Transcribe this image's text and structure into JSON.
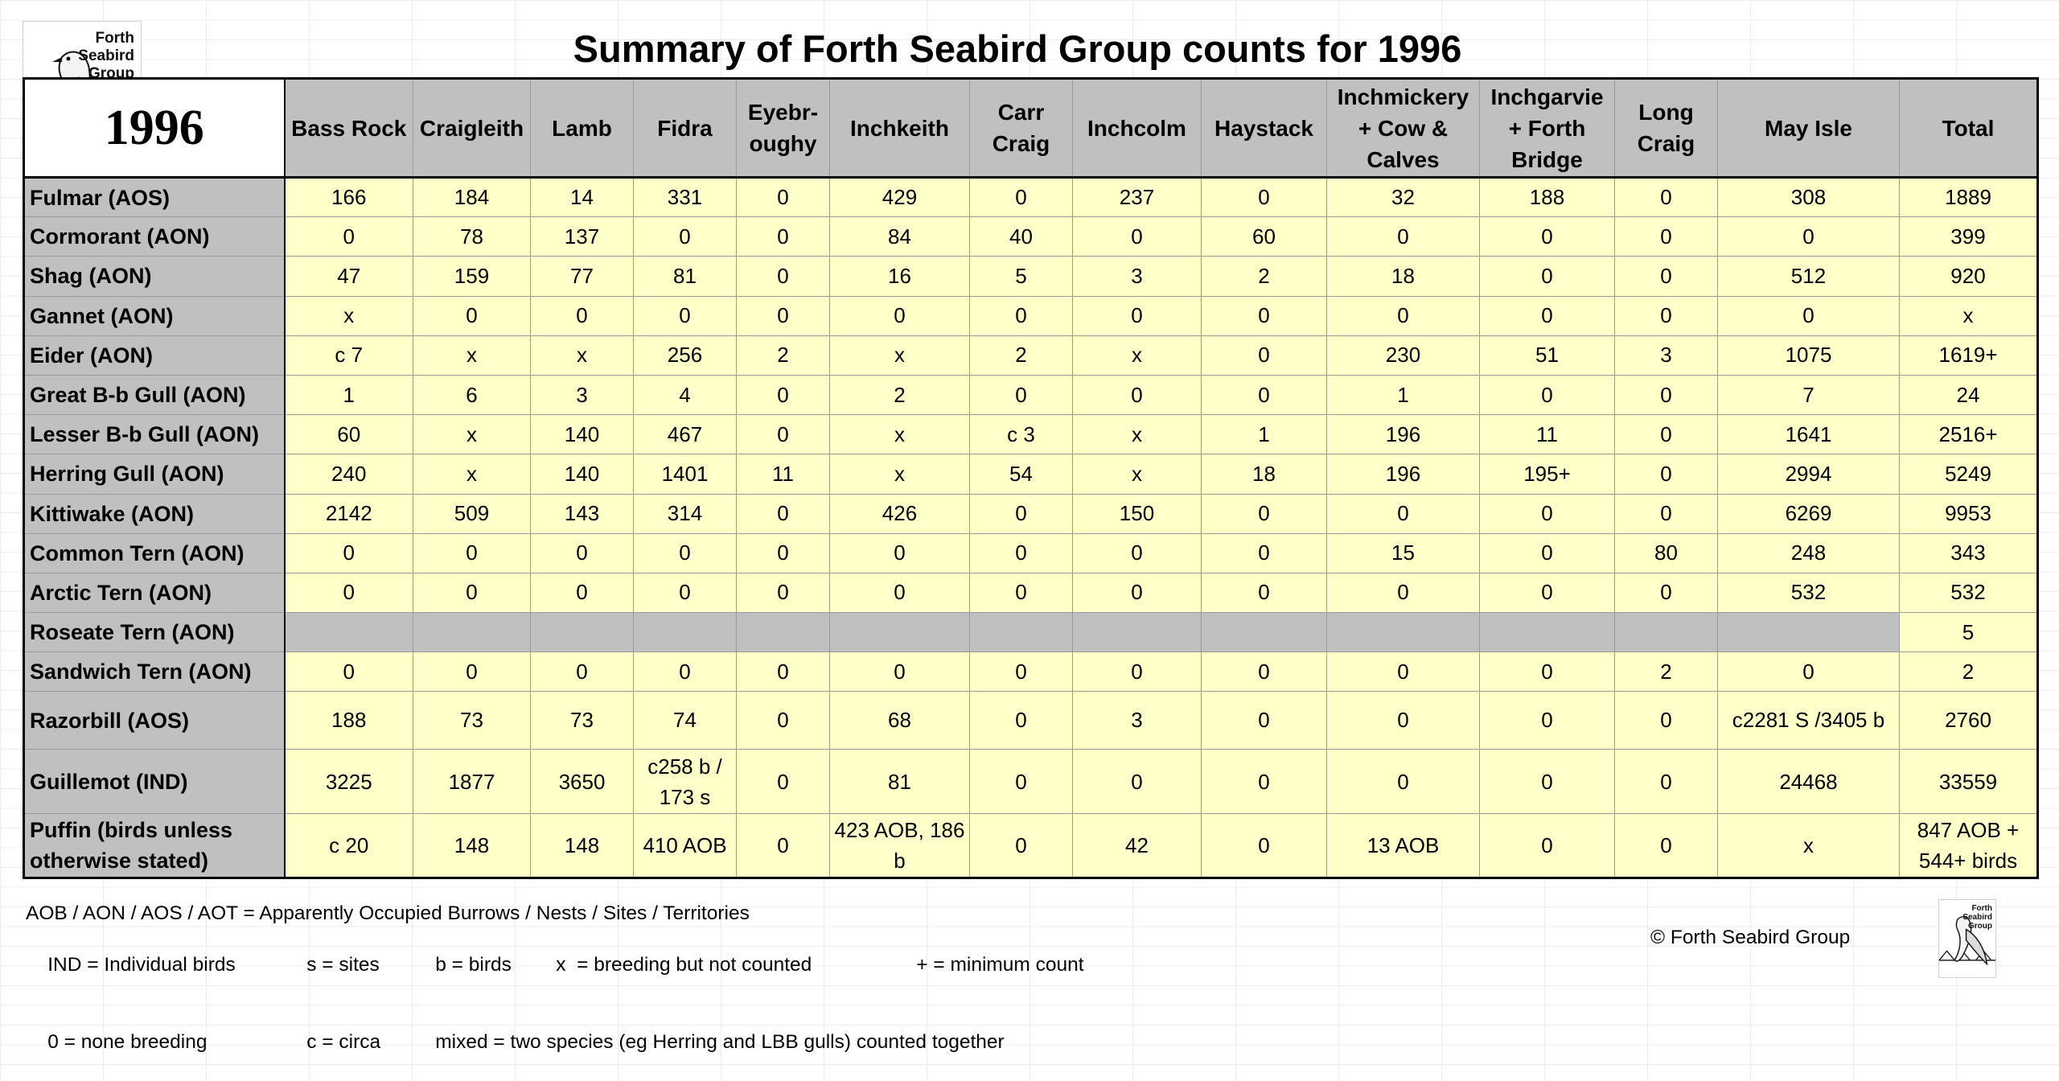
{
  "logo": {
    "text": "Forth\nSeabird\nGroup"
  },
  "title": "Summary of Forth Seabird Group counts for 1996",
  "table": {
    "year": "1996",
    "columns": [
      "Bass Rock",
      "Craigleith",
      "Lamb",
      "Fidra",
      "Eyebr-\noughy",
      "Inchkeith",
      "Carr\nCraig",
      "Inchcolm",
      "Haystack",
      "Inchmickery\n+ Cow &\nCalves",
      "Inchgarvie\n+ Forth\nBridge",
      "Long\nCraig",
      "May Isle",
      "Total"
    ],
    "rows": [
      {
        "species": "Fulmar (AOS)",
        "values": [
          "166",
          "184",
          "14",
          "331",
          "0",
          "429",
          "0",
          "237",
          "0",
          "32",
          "188",
          "0",
          "308",
          "1889"
        ]
      },
      {
        "species": "Cormorant (AON)",
        "values": [
          "0",
          "78",
          "137",
          "0",
          "0",
          "84",
          "40",
          "0",
          "60",
          "0",
          "0",
          "0",
          "0",
          "399"
        ]
      },
      {
        "species": "Shag (AON)",
        "values": [
          "47",
          "159",
          "77",
          "81",
          "0",
          "16",
          "5",
          "3",
          "2",
          "18",
          "0",
          "0",
          "512",
          "920"
        ]
      },
      {
        "species": "Gannet (AON)",
        "values": [
          "x",
          "0",
          "0",
          "0",
          "0",
          "0",
          "0",
          "0",
          "0",
          "0",
          "0",
          "0",
          "0",
          "x"
        ]
      },
      {
        "species": "Eider (AON)",
        "values": [
          "c 7",
          "x",
          "x",
          "256",
          "2",
          "x",
          "2",
          "x",
          "0",
          "230",
          "51",
          "3",
          "1075",
          "1619+"
        ]
      },
      {
        "species": "Great B-b Gull (AON)",
        "values": [
          "1",
          "6",
          "3",
          "4",
          "0",
          "2",
          "0",
          "0",
          "0",
          "1",
          "0",
          "0",
          "7",
          "24"
        ]
      },
      {
        "species": "Lesser B-b Gull (AON)",
        "values": [
          "60",
          "x",
          "140",
          "467",
          "0",
          "x",
          "c 3",
          "x",
          "1",
          "196",
          "11",
          "0",
          "1641",
          "2516+"
        ]
      },
      {
        "species": "Herring Gull (AON)",
        "values": [
          "240",
          "x",
          "140",
          "1401",
          "11",
          "x",
          "54",
          "x",
          "18",
          "196",
          "195+",
          "0",
          "2994",
          "5249"
        ]
      },
      {
        "species": "Kittiwake (AON)",
        "values": [
          "2142",
          "509",
          "143",
          "314",
          "0",
          "426",
          "0",
          "150",
          "0",
          "0",
          "0",
          "0",
          "6269",
          "9953"
        ]
      },
      {
        "species": "Common Tern (AON)",
        "values": [
          "0",
          "0",
          "0",
          "0",
          "0",
          "0",
          "0",
          "0",
          "0",
          "15",
          "0",
          "80",
          "248",
          "343"
        ]
      },
      {
        "species": "Arctic Tern (AON)",
        "values": [
          "0",
          "0",
          "0",
          "0",
          "0",
          "0",
          "0",
          "0",
          "0",
          "0",
          "0",
          "0",
          "532",
          "532"
        ]
      },
      {
        "species": "Roseate Tern (AON)",
        "values": [
          "",
          "",
          "",
          "",
          "",
          "",
          "",
          "",
          "",
          "",
          "",
          "",
          "",
          "5"
        ],
        "grey": true
      },
      {
        "species": "Sandwich Tern (AON)",
        "values": [
          "0",
          "0",
          "0",
          "0",
          "0",
          "0",
          "0",
          "0",
          "0",
          "0",
          "0",
          "2",
          "0",
          "2"
        ]
      },
      {
        "species": "Razorbill (AOS)",
        "values": [
          "188",
          "73",
          "73",
          "74",
          "0",
          "68",
          "0",
          "3",
          "0",
          "0",
          "0",
          "0",
          "c2281 S /3405 b",
          "2760"
        ]
      },
      {
        "species": "Guillemot (IND)",
        "values": [
          "3225",
          "1877",
          "3650",
          "c258 b /\n173 s",
          "0",
          "81",
          "0",
          "0",
          "0",
          "0",
          "0",
          "0",
          "24468",
          "33559"
        ]
      },
      {
        "species": "Puffin (birds unless\notherwise stated)",
        "values": [
          "c 20",
          "148",
          "148",
          "410 AOB",
          "0",
          "423 AOB, 186\nb",
          "0",
          "42",
          "0",
          "13 AOB",
          "0",
          "0",
          "x",
          "847 AOB +\n544+ birds"
        ]
      }
    ]
  },
  "legend": {
    "line1": "AOB / AON / AOS / AOT = Apparently Occupied Burrows / Nests / Sites / Territories",
    "line2": [
      "IND = Individual birds",
      "s = sites",
      "b = birds",
      "x  = breeding but not counted",
      "+ = minimum count"
    ],
    "line3": [
      "0 = none breeding",
      "c = circa",
      "mixed = two species (eg Herring and LBB gulls) counted together"
    ]
  },
  "copyright": "© Forth Seabird Group",
  "colors": {
    "header_grey": "#c0c0c0",
    "cell_yellow": "#ffffc9"
  }
}
